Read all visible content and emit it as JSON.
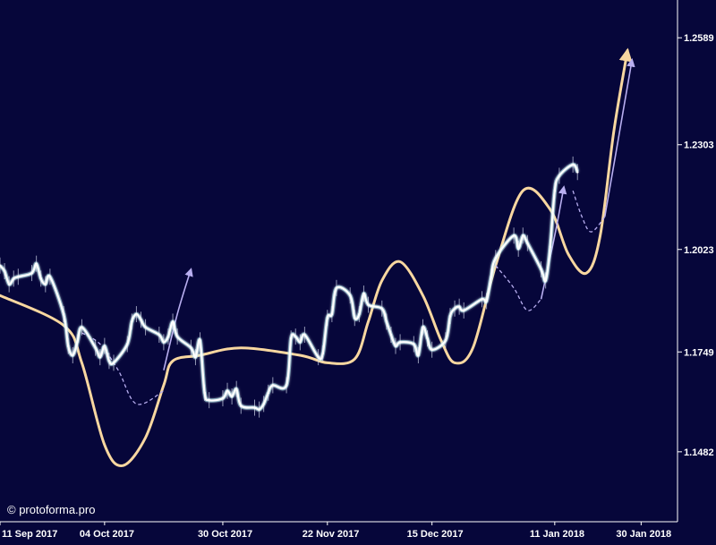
{
  "watermark": "© protoforma.pro",
  "chart_data": {
    "type": "line",
    "x_range": [
      "2017-09-11",
      "2018-02-07"
    ],
    "y_range": [
      1.1295,
      1.269
    ],
    "y_ticks": [
      {
        "label": "1.2589",
        "value": 1.2589
      },
      {
        "label": "1.2303",
        "value": 1.2303
      },
      {
        "label": "1.2023",
        "value": 1.2023
      },
      {
        "label": "1.1749",
        "value": 1.1749
      },
      {
        "label": "1.1482",
        "value": 1.1482
      }
    ],
    "x_ticks": [
      {
        "label": "11 Sep 2017",
        "date": "2017-09-11"
      },
      {
        "label": "04 Oct 2017",
        "date": "2017-10-04"
      },
      {
        "label": "30 Oct 2017",
        "date": "2017-10-30"
      },
      {
        "label": "22 Nov 2017",
        "date": "2017-11-22"
      },
      {
        "label": "15 Dec 2017",
        "date": "2017-12-15"
      },
      {
        "label": "11 Jan 2018",
        "date": "2018-01-11"
      },
      {
        "label": "30 Jan 2018",
        "date": "2018-01-30"
      }
    ],
    "colors": {
      "background": "#06063a",
      "price": "#ffffff",
      "price_glow": "#8ee8ec",
      "forecast_orange": "#f8d7a0",
      "forecast_lavender": "#b8aef0"
    },
    "series": [
      {
        "kind": "price",
        "x": [
          "2017-09-11",
          "2017-09-12",
          "2017-09-13",
          "2017-09-14",
          "2017-09-15",
          "2017-09-18",
          "2017-09-19",
          "2017-09-20",
          "2017-09-21",
          "2017-09-22",
          "2017-09-25",
          "2017-09-26",
          "2017-09-27",
          "2017-09-28",
          "2017-09-29",
          "2017-10-02",
          "2017-10-03",
          "2017-10-04",
          "2017-10-05",
          "2017-10-06",
          "2017-10-09",
          "2017-10-10",
          "2017-10-11",
          "2017-10-12",
          "2017-10-13",
          "2017-10-16",
          "2017-10-17",
          "2017-10-18",
          "2017-10-19",
          "2017-10-20",
          "2017-10-23",
          "2017-10-24",
          "2017-10-25",
          "2017-10-26",
          "2017-10-27",
          "2017-10-30",
          "2017-10-31",
          "2017-11-01",
          "2017-11-02",
          "2017-11-03",
          "2017-11-06",
          "2017-11-07",
          "2017-11-08",
          "2017-11-09",
          "2017-11-10",
          "2017-11-13",
          "2017-11-14",
          "2017-11-15",
          "2017-11-16",
          "2017-11-17",
          "2017-11-20",
          "2017-11-21",
          "2017-11-22",
          "2017-11-23",
          "2017-11-24",
          "2017-11-27",
          "2017-11-28",
          "2017-11-29",
          "2017-11-30",
          "2017-12-01",
          "2017-12-04",
          "2017-12-05",
          "2017-12-06",
          "2017-12-07",
          "2017-12-08",
          "2017-12-11",
          "2017-12-12",
          "2017-12-13",
          "2017-12-14",
          "2017-12-15",
          "2017-12-18",
          "2017-12-19",
          "2017-12-20",
          "2017-12-21",
          "2017-12-22",
          "2017-12-26",
          "2017-12-27",
          "2017-12-28",
          "2017-12-29",
          "2018-01-02",
          "2018-01-03",
          "2018-01-04",
          "2018-01-05",
          "2018-01-08",
          "2018-01-09",
          "2018-01-10",
          "2018-01-11",
          "2018-01-12",
          "2018-01-15",
          "2018-01-16"
        ],
        "y": [
          1.198,
          1.1965,
          1.193,
          1.1945,
          1.195,
          1.196,
          1.1985,
          1.1945,
          1.193,
          1.195,
          1.185,
          1.1765,
          1.174,
          1.1775,
          1.1815,
          1.176,
          1.1735,
          1.1765,
          1.1725,
          1.172,
          1.177,
          1.183,
          1.185,
          1.1835,
          1.1815,
          1.1795,
          1.1775,
          1.179,
          1.183,
          1.179,
          1.176,
          1.1735,
          1.178,
          1.164,
          1.162,
          1.1625,
          1.1645,
          1.163,
          1.165,
          1.1605,
          1.16,
          1.1595,
          1.161,
          1.164,
          1.166,
          1.166,
          1.1785,
          1.179,
          1.1775,
          1.1795,
          1.1735,
          1.1745,
          1.184,
          1.185,
          1.192,
          1.19,
          1.184,
          1.185,
          1.1905,
          1.1875,
          1.1865,
          1.183,
          1.1795,
          1.1765,
          1.1775,
          1.177,
          1.174,
          1.1815,
          1.1785,
          1.1755,
          1.178,
          1.1845,
          1.1865,
          1.187,
          1.186,
          1.189,
          1.1885,
          1.195,
          1.2,
          1.206,
          1.2025,
          1.206,
          1.204,
          1.197,
          1.194,
          1.203,
          1.218,
          1.222,
          1.225,
          1.223
        ]
      },
      {
        "kind": "forecast_orange",
        "x": [
          "2017-09-11",
          "2017-09-25",
          "2017-09-29",
          "2017-10-04",
          "2017-10-08",
          "2017-10-13",
          "2017-10-17",
          "2017-10-19",
          "2017-10-25",
          "2017-11-03",
          "2017-11-16",
          "2017-11-22",
          "2017-11-28",
          "2017-12-01",
          "2017-12-04",
          "2017-12-08",
          "2017-12-13",
          "2017-12-17",
          "2017-12-20",
          "2017-12-24",
          "2017-12-29",
          "2018-01-04",
          "2018-01-10",
          "2018-01-14",
          "2018-01-18",
          "2018-01-21",
          "2018-01-24",
          "2018-01-27"
        ],
        "y": [
          1.19,
          1.182,
          1.172,
          1.15,
          1.1445,
          1.152,
          1.166,
          1.1725,
          1.174,
          1.176,
          1.174,
          1.172,
          1.173,
          1.183,
          1.194,
          1.199,
          1.19,
          1.178,
          1.172,
          1.176,
          1.198,
          1.218,
          1.213,
          1.201,
          1.196,
          1.206,
          1.234,
          1.2555
        ]
      },
      {
        "kind": "forecast_lavender_dashed",
        "x": [
          "2017-09-29",
          "2017-10-03",
          "2017-10-07",
          "2017-10-11",
          "2017-10-17"
        ],
        "y": [
          1.18,
          1.177,
          1.17,
          1.161,
          1.1645
        ]
      },
      {
        "kind": "forecast_lavender_dashed",
        "x": [
          "2017-12-29",
          "2018-01-02",
          "2018-01-05",
          "2018-01-08"
        ],
        "y": [
          1.198,
          1.192,
          1.186,
          1.189
        ]
      },
      {
        "kind": "forecast_lavender_dashed",
        "x": [
          "2018-01-15",
          "2018-01-17",
          "2018-01-19",
          "2018-01-22"
        ],
        "y": [
          1.218,
          1.211,
          1.207,
          1.211
        ]
      },
      {
        "kind": "forecast_lavender_arrow",
        "x": [
          "2017-10-17",
          "2017-10-20",
          "2017-10-23"
        ],
        "y": [
          1.17,
          1.185,
          1.197
        ]
      },
      {
        "kind": "forecast_lavender_arrow",
        "x": [
          "2018-01-08",
          "2018-01-11",
          "2018-01-13"
        ],
        "y": [
          1.189,
          1.206,
          1.219
        ]
      },
      {
        "kind": "forecast_lavender_arrow",
        "x": [
          "2018-01-22",
          "2018-01-25",
          "2018-01-28"
        ],
        "y": [
          1.211,
          1.232,
          1.253
        ]
      }
    ]
  }
}
